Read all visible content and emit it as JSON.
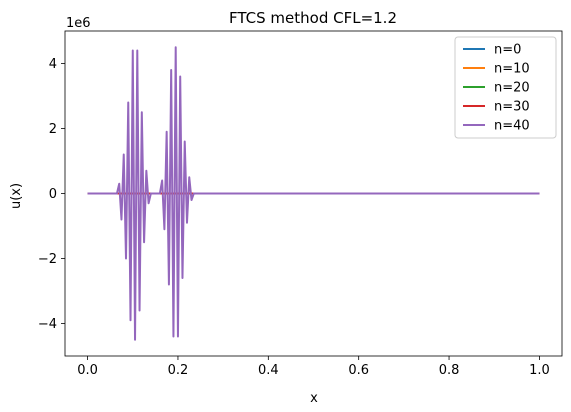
{
  "chart_data": {
    "type": "line",
    "title": "FTCS method CFL=1.2",
    "xlabel": "x",
    "ylabel": "u(x)",
    "y_offset_label": "1e6",
    "xlim": [
      -0.05,
      1.05
    ],
    "ylim": [
      -5.0,
      5.0
    ],
    "x_ticks": [
      0.0,
      0.2,
      0.4,
      0.6,
      0.8,
      1.0
    ],
    "x_tick_labels": [
      "0.0",
      "0.2",
      "0.4",
      "0.6",
      "0.8",
      "1.0"
    ],
    "y_ticks": [
      -4,
      -2,
      0,
      2,
      4
    ],
    "y_tick_labels": [
      "−4",
      "−2",
      "0",
      "2",
      "4"
    ],
    "grid": false,
    "legend_position": "top-right",
    "series": [
      {
        "name": "n=0",
        "color": "#1f77b4",
        "x": [
          0.0,
          1.0
        ],
        "y": [
          0,
          0
        ]
      },
      {
        "name": "n=10",
        "color": "#ff7f0e",
        "x": [
          0.0,
          1.0
        ],
        "y": [
          0,
          0
        ]
      },
      {
        "name": "n=20",
        "color": "#2ca02c",
        "x": [
          0.0,
          1.0
        ],
        "y": [
          0,
          0
        ]
      },
      {
        "name": "n=30",
        "color": "#d62728",
        "x": [
          0.0,
          1.0
        ],
        "y": [
          0,
          0
        ]
      },
      {
        "name": "n=40",
        "color": "#9467bd",
        "x": [
          0.0,
          0.065,
          0.07,
          0.075,
          0.08,
          0.085,
          0.09,
          0.095,
          0.1,
          0.105,
          0.11,
          0.115,
          0.12,
          0.125,
          0.13,
          0.135,
          0.14,
          0.16,
          0.165,
          0.17,
          0.175,
          0.18,
          0.185,
          0.19,
          0.195,
          0.2,
          0.205,
          0.21,
          0.215,
          0.22,
          0.225,
          0.23,
          0.235,
          1.0
        ],
        "y": [
          0,
          0,
          0.3,
          -0.8,
          1.2,
          -2.0,
          2.8,
          -3.9,
          4.4,
          -4.5,
          4.4,
          -3.6,
          2.5,
          -1.5,
          0.7,
          -0.3,
          0,
          0,
          0.4,
          -1.1,
          1.9,
          -2.8,
          3.8,
          -4.4,
          4.5,
          -4.4,
          3.6,
          -2.6,
          1.6,
          -0.9,
          0.5,
          -0.2,
          0,
          0
        ]
      }
    ]
  }
}
